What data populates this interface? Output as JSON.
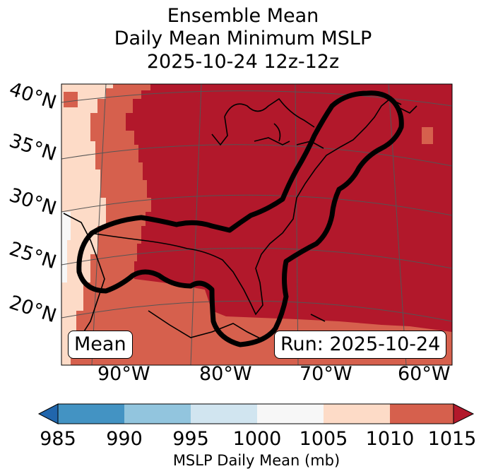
{
  "title": {
    "line1": "Ensemble Mean",
    "line2": "Daily Mean Minimum MSLP",
    "line3": "2025-10-24 12z-12z"
  },
  "map": {
    "lat_labels": [
      "40°N",
      "35°N",
      "30°N",
      "25°N",
      "20°N"
    ],
    "lon_labels": [
      "90°W",
      "80°W",
      "70°W",
      "60°W"
    ],
    "mean_box": "Mean",
    "run_box": "Run: 2025-10-24",
    "colors": {
      "fill_1015_plus": "#b2182b",
      "fill_1010_1015": "#d6604d",
      "fill_1005_1010": "#fddbc7",
      "fill_1000_1005": "#f7f7f7",
      "contour": "#000000",
      "coast": "#000000",
      "grid": "#555555"
    }
  },
  "colorbar": {
    "ticks": [
      "985",
      "990",
      "995",
      "1000",
      "1005",
      "1010",
      "1015"
    ],
    "colors": [
      "#2166ac",
      "#4393c3",
      "#92c5de",
      "#d1e5f0",
      "#f7f7f7",
      "#fddbc7",
      "#d6604d",
      "#b2182b"
    ],
    "label": "MSLP Daily Mean (mb)"
  }
}
